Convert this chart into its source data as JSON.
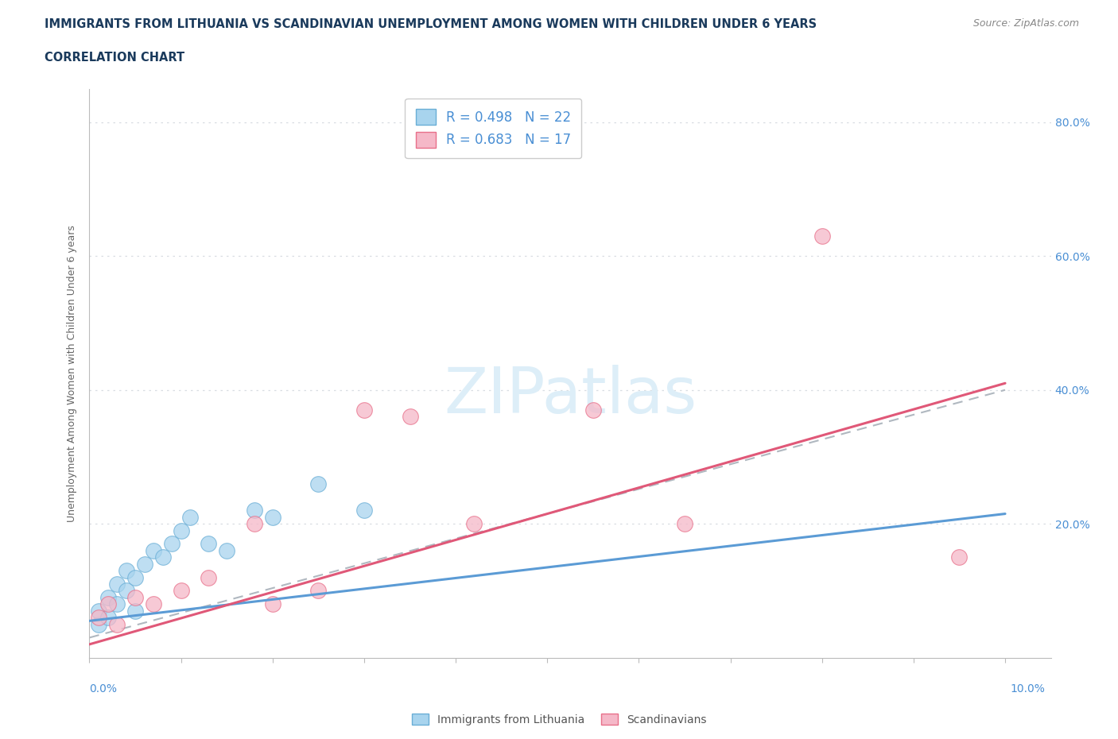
{
  "title_line1": "IMMIGRANTS FROM LITHUANIA VS SCANDINAVIAN UNEMPLOYMENT AMONG WOMEN WITH CHILDREN UNDER 6 YEARS",
  "title_line2": "CORRELATION CHART",
  "source": "Source: ZipAtlas.com",
  "ylabel": "Unemployment Among Women with Children Under 6 years",
  "legend_blue_r": "R = 0.498",
  "legend_blue_n": "N = 22",
  "legend_pink_r": "R = 0.683",
  "legend_pink_n": "N = 17",
  "blue_scatter_x": [
    0.001,
    0.001,
    0.002,
    0.002,
    0.003,
    0.003,
    0.004,
    0.004,
    0.005,
    0.005,
    0.006,
    0.007,
    0.008,
    0.009,
    0.01,
    0.011,
    0.013,
    0.015,
    0.018,
    0.02,
    0.025,
    0.03
  ],
  "blue_scatter_y": [
    0.05,
    0.07,
    0.06,
    0.09,
    0.08,
    0.11,
    0.1,
    0.13,
    0.07,
    0.12,
    0.14,
    0.16,
    0.15,
    0.17,
    0.19,
    0.21,
    0.17,
    0.16,
    0.22,
    0.21,
    0.26,
    0.22
  ],
  "pink_scatter_x": [
    0.001,
    0.002,
    0.003,
    0.005,
    0.007,
    0.01,
    0.013,
    0.018,
    0.02,
    0.025,
    0.03,
    0.035,
    0.042,
    0.055,
    0.065,
    0.08,
    0.095
  ],
  "pink_scatter_y": [
    0.06,
    0.08,
    0.05,
    0.09,
    0.08,
    0.1,
    0.12,
    0.2,
    0.08,
    0.1,
    0.37,
    0.36,
    0.2,
    0.37,
    0.2,
    0.63,
    0.15
  ],
  "blue_trend_x": [
    0.0,
    0.1
  ],
  "blue_trend_y": [
    0.055,
    0.215
  ],
  "pink_trend_x": [
    0.0,
    0.1
  ],
  "pink_trend_y": [
    0.02,
    0.41
  ],
  "dashed_trend_x": [
    0.0,
    0.1
  ],
  "dashed_trend_y": [
    0.03,
    0.4
  ],
  "blue_color": "#a8d4ee",
  "blue_edge_color": "#6aaed6",
  "pink_color": "#f5b8c8",
  "pink_edge_color": "#e8708a",
  "blue_line_color": "#5b9bd5",
  "pink_line_color": "#e05878",
  "dashed_line_color": "#b0b8c0",
  "title_color": "#1a3a5c",
  "axis_label_color": "#4a8fd4",
  "ylabel_color": "#666666",
  "background_color": "#ffffff",
  "watermark_text": "ZIPatlas",
  "watermark_color": "#ddeef8",
  "ylim": [
    0.0,
    0.85
  ],
  "xlim": [
    0.0,
    0.105
  ],
  "yticks": [
    0.0,
    0.2,
    0.4,
    0.6,
    0.8
  ],
  "ytick_labels": [
    "",
    "20.0%",
    "40.0%",
    "60.0%",
    "80.0%"
  ],
  "grid_color": "#d8dde2",
  "scatter_size": 200
}
